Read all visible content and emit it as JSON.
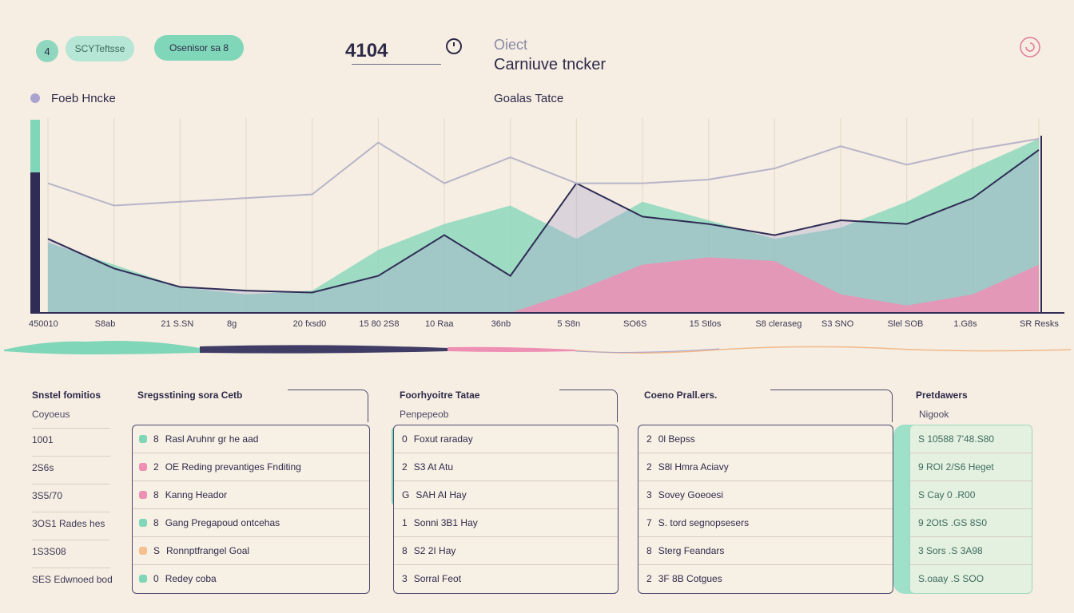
{
  "header": {
    "circle_button": "4",
    "pill_secondary": "SCYTeftsse",
    "pill_primary": "Osenisor sa 8",
    "value": "4104",
    "title_small": "Oiect",
    "title": "Carniuve tncker"
  },
  "sections": {
    "left_chart_title": "Foeb Hncke",
    "right_chart_title": "Goalas Tatce"
  },
  "chart_data": {
    "type": "area",
    "title": "Goalas Tatce",
    "categories": [
      "450010",
      "S8ab",
      "21 S.SN",
      "8g",
      "20 fxsd0",
      "15 80 2S8",
      "10 Raa",
      "36nb",
      "5 S8n",
      "SO6S",
      "15 Stlos",
      "S8 cleraseg",
      "S3 SNO",
      "Slel SOB",
      "1.G8s",
      "SR Resks"
    ],
    "series": [
      {
        "name": "mint-area",
        "values": [
          38,
          26,
          14,
          10,
          12,
          34,
          48,
          58,
          40,
          60,
          50,
          40,
          46,
          60,
          78,
          94
        ]
      },
      {
        "name": "navy-line",
        "values": [
          40,
          24,
          14,
          12,
          11,
          20,
          42,
          20,
          70,
          52,
          48,
          42,
          50,
          48,
          62,
          88
        ]
      },
      {
        "name": "pink-area",
        "values": [
          0,
          0,
          0,
          0,
          0,
          0,
          0,
          0,
          12,
          26,
          30,
          28,
          10,
          4,
          10,
          26
        ]
      },
      {
        "name": "gray-line",
        "values": [
          70,
          58,
          60,
          62,
          64,
          92,
          70,
          84,
          70,
          70,
          72,
          78,
          90,
          80,
          88,
          94
        ]
      }
    ],
    "ylim": [
      0,
      100
    ],
    "colors": {
      "mint": "#7fd6b8",
      "navy": "#2f2d56",
      "pink": "#ee8fb4",
      "lavender": "#a9a4cf",
      "peach": "#f4c08f"
    }
  },
  "table": {
    "col0_header": "Snstel fomitios",
    "col0_sub": "Coyoeus",
    "col0_values": [
      "1001",
      "2S6s",
      "3S5/70",
      "3OS1 Rades hes",
      "1S3S08",
      "SES Edwnoed bod"
    ],
    "panel1": {
      "header": "Sregsstining sora Cetb",
      "rows": [
        {
          "num": "8",
          "label": "Rasl Aruhnr gr he aad",
          "color": "#7fd6b8"
        },
        {
          "num": "2",
          "label": "OE Reding prevantiges Fnditing",
          "color": "#ee8fb4"
        },
        {
          "num": "8",
          "label": "Kanng Heador",
          "color": "#ee8fb4"
        },
        {
          "num": "8",
          "label": "Gang Pregapoud ontcehas",
          "color": "#7fd6b8"
        },
        {
          "num": "S",
          "label": "Ronnptfrangel Goal",
          "color": "#f4c08f"
        },
        {
          "num": "0",
          "label": "Redey coba",
          "color": "#7fd6b8"
        }
      ]
    },
    "panel2": {
      "header": "Foorhyoitre Tatae",
      "sub": "Penpepeob",
      "rows": [
        {
          "num": "0",
          "label": "Foxut raraday"
        },
        {
          "num": "2",
          "label": "S3 At Atu"
        },
        {
          "num": "G",
          "label": "SAH AI Hay"
        },
        {
          "num": "1",
          "label": "Sonni 3B1 Hay"
        },
        {
          "num": "8",
          "label": "S2 2I Hay"
        },
        {
          "num": "3",
          "label": "Sorral Feot"
        }
      ]
    },
    "panel3": {
      "header": "Coeno Prall.ers.",
      "rows": [
        {
          "num": "2",
          "label": "0l Bepss"
        },
        {
          "num": "2",
          "label": "S8l Hmra Aciavy"
        },
        {
          "num": "3",
          "label": "Sovey Goeoesi"
        },
        {
          "num": "7",
          "label": "S. tord segnopsesers"
        },
        {
          "num": "8",
          "label": "Sterg Feandars"
        },
        {
          "num": "2",
          "label": "3F 8B Cotgues"
        }
      ]
    },
    "panel4": {
      "header": "Pretdawers",
      "sub": "Nigook",
      "rows": [
        "S 10588 7'48.S80",
        "9 ROI 2/S6 Heget",
        "S Cay 0 .R00",
        "9 2OtS .GS 8S0",
        "3 Sors .S 3A98",
        "S.oaay .S SOO"
      ]
    }
  }
}
